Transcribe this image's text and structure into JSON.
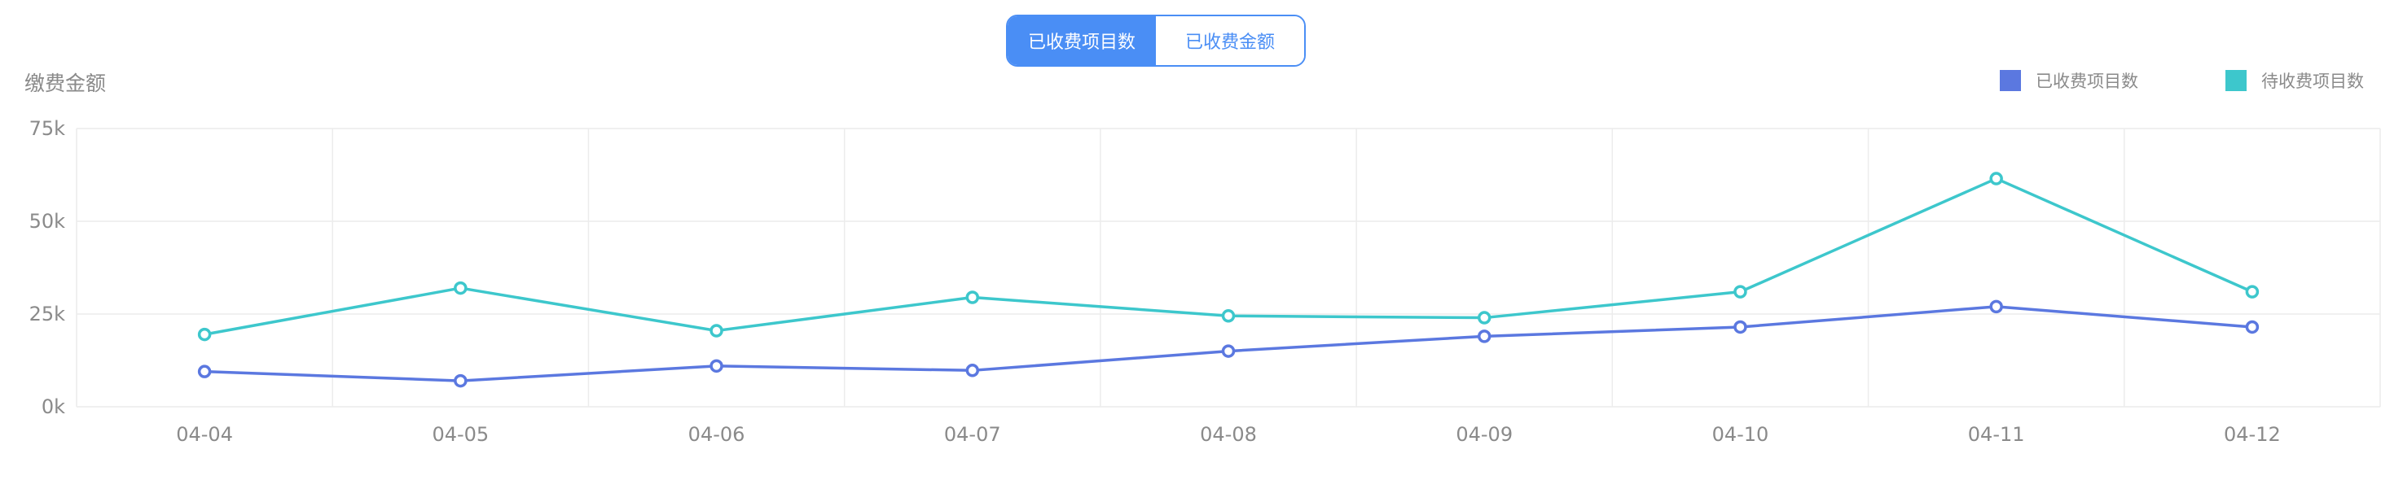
{
  "toggle": {
    "active_label": "已收费项目数",
    "inactive_label": "已收费金额"
  },
  "colors": {
    "accent": "#4a8ef5",
    "series_collected": "#5b78e0",
    "series_pending": "#3dc7cc",
    "grid": "#ececec",
    "axis_text": "#8a8a8a"
  },
  "chart_data": {
    "type": "line",
    "title": "",
    "ylabel": "缴费金额",
    "xlabel": "",
    "categories": [
      "04-04",
      "04-05",
      "04-06",
      "04-07",
      "04-08",
      "04-09",
      "04-10",
      "04-11",
      "04-12"
    ],
    "ylim": [
      0,
      75000
    ],
    "yticks": [
      {
        "value": 0,
        "label": "0k"
      },
      {
        "value": 25000,
        "label": "25k"
      },
      {
        "value": 50000,
        "label": "50k"
      },
      {
        "value": 75000,
        "label": "75k"
      }
    ],
    "grid": true,
    "legend_position": "top-right",
    "series": [
      {
        "name": "已收费项目数",
        "color": "#5b78e0",
        "values": [
          9500,
          7000,
          11000,
          9800,
          15000,
          19000,
          21500,
          27000,
          21500
        ]
      },
      {
        "name": "待收费项目数",
        "color": "#3dc7cc",
        "values": [
          19500,
          32000,
          20500,
          29500,
          24500,
          24000,
          31000,
          61500,
          31000
        ]
      }
    ]
  }
}
